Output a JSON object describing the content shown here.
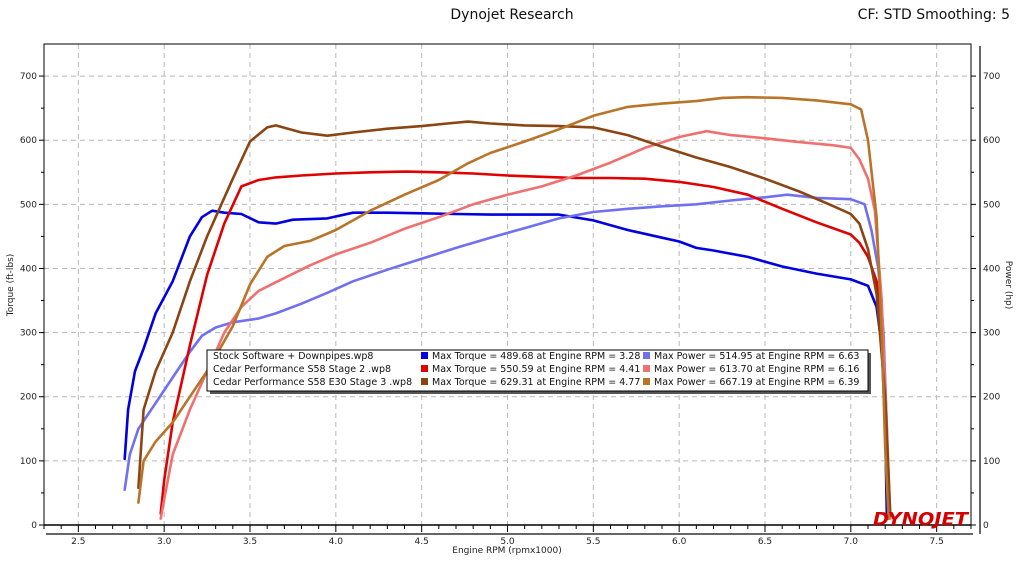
{
  "header": {
    "title": "Dynojet Research",
    "right_info": "CF: STD Smoothing: 5"
  },
  "logo": {
    "text": "DYNOJET"
  },
  "chart_data": {
    "type": "line",
    "xlabel": "Engine RPM (rpmx1000)",
    "ylabel_left": "Torque (ft-lbs)",
    "ylabel_right": "Power (hp)",
    "xlim": [
      2.3,
      7.7
    ],
    "ylim_left": [
      0,
      750
    ],
    "ylim_right": [
      0,
      750
    ],
    "x_ticks": [
      "2.5",
      "3.0",
      "3.5",
      "4.0",
      "4.5",
      "5.0",
      "5.5",
      "6.0",
      "6.5",
      "7.0",
      "7.5"
    ],
    "y_ticks_left": [
      "0",
      "100",
      "200",
      "300",
      "400",
      "500",
      "600",
      "700"
    ],
    "y_ticks_right": [
      "0",
      "100",
      "200",
      "300",
      "400",
      "500",
      "600",
      "700"
    ],
    "grid": true,
    "legend_position": "bottom-center",
    "legend": [
      {
        "run": "Stock Software + Downpipes.wp8",
        "torque_label": "Max Torque = 489.68 at Engine RPM = 3.28",
        "power_label": "Max Power = 514.95 at Engine RPM = 6.63",
        "torque_color": "#0000e0",
        "power_color": "#7070f0"
      },
      {
        "run": "Cedar Performance S58 Stage 2 .wp8",
        "torque_label": "Max Torque = 550.59 at Engine RPM = 4.41",
        "power_label": "Max Power = 613.70 at Engine RPM = 6.16",
        "torque_color": "#e00000",
        "power_color": "#f07070"
      },
      {
        "run": "Cedar Performance S58 E30 Stage 3  .wp8",
        "torque_label": "Max Torque = 629.31 at Engine RPM = 4.77",
        "power_label": "Max Power = 667.19 at Engine RPM = 6.39",
        "torque_color": "#8b4513",
        "power_color": "#b8752a"
      }
    ],
    "series": [
      {
        "name": "Stock Software + Downpipes.wp8",
        "kind": "torque",
        "color": "#0000e0",
        "points": [
          [
            2.77,
            103
          ],
          [
            2.79,
            180
          ],
          [
            2.83,
            240
          ],
          [
            2.88,
            275
          ],
          [
            2.95,
            330
          ],
          [
            3.05,
            380
          ],
          [
            3.15,
            450
          ],
          [
            3.22,
            480
          ],
          [
            3.28,
            490
          ],
          [
            3.35,
            487
          ],
          [
            3.45,
            485
          ],
          [
            3.55,
            472
          ],
          [
            3.65,
            470
          ],
          [
            3.75,
            476
          ],
          [
            3.85,
            477
          ],
          [
            3.95,
            478
          ],
          [
            4.1,
            487
          ],
          [
            4.3,
            487
          ],
          [
            4.5,
            486
          ],
          [
            4.7,
            485
          ],
          [
            4.9,
            484
          ],
          [
            5.1,
            484
          ],
          [
            5.3,
            484
          ],
          [
            5.5,
            475
          ],
          [
            5.7,
            460
          ],
          [
            5.9,
            448
          ],
          [
            6.0,
            442
          ],
          [
            6.1,
            432
          ],
          [
            6.2,
            428
          ],
          [
            6.4,
            418
          ],
          [
            6.6,
            403
          ],
          [
            6.8,
            392
          ],
          [
            7.0,
            383
          ],
          [
            7.1,
            373
          ],
          [
            7.15,
            340
          ],
          [
            7.18,
            280
          ],
          [
            7.2,
            150
          ],
          [
            7.21,
            10
          ]
        ]
      },
      {
        "name": "Stock Software + Downpipes.wp8",
        "kind": "power",
        "color": "#7070f0",
        "points": [
          [
            2.77,
            55
          ],
          [
            2.8,
            110
          ],
          [
            2.85,
            150
          ],
          [
            2.95,
            190
          ],
          [
            3.05,
            230
          ],
          [
            3.15,
            270
          ],
          [
            3.22,
            295
          ],
          [
            3.3,
            308
          ],
          [
            3.4,
            316
          ],
          [
            3.55,
            322
          ],
          [
            3.65,
            330
          ],
          [
            3.8,
            345
          ],
          [
            3.95,
            362
          ],
          [
            4.1,
            380
          ],
          [
            4.3,
            398
          ],
          [
            4.5,
            415
          ],
          [
            4.7,
            432
          ],
          [
            4.9,
            448
          ],
          [
            5.1,
            463
          ],
          [
            5.3,
            478
          ],
          [
            5.5,
            488
          ],
          [
            5.7,
            493
          ],
          [
            5.9,
            497
          ],
          [
            6.1,
            500
          ],
          [
            6.3,
            506
          ],
          [
            6.5,
            511
          ],
          [
            6.63,
            515
          ],
          [
            6.8,
            510
          ],
          [
            7.0,
            508
          ],
          [
            7.08,
            500
          ],
          [
            7.12,
            460
          ],
          [
            7.16,
            400
          ],
          [
            7.19,
            300
          ],
          [
            7.21,
            150
          ],
          [
            7.22,
            10
          ]
        ]
      },
      {
        "name": "Cedar Performance S58 Stage 2 .wp8",
        "kind": "torque",
        "color": "#e00000",
        "points": [
          [
            2.98,
            18
          ],
          [
            3.0,
            70
          ],
          [
            3.05,
            160
          ],
          [
            3.15,
            280
          ],
          [
            3.25,
            390
          ],
          [
            3.35,
            470
          ],
          [
            3.45,
            528
          ],
          [
            3.55,
            538
          ],
          [
            3.65,
            542
          ],
          [
            3.8,
            545
          ],
          [
            4.0,
            548
          ],
          [
            4.2,
            550
          ],
          [
            4.41,
            551
          ],
          [
            4.6,
            550
          ],
          [
            4.8,
            548
          ],
          [
            5.0,
            545
          ],
          [
            5.2,
            543
          ],
          [
            5.4,
            541
          ],
          [
            5.6,
            541
          ],
          [
            5.8,
            540
          ],
          [
            6.0,
            535
          ],
          [
            6.2,
            527
          ],
          [
            6.4,
            515
          ],
          [
            6.6,
            493
          ],
          [
            6.8,
            472
          ],
          [
            7.0,
            453
          ],
          [
            7.05,
            440
          ],
          [
            7.1,
            418
          ],
          [
            7.15,
            380
          ],
          [
            7.18,
            300
          ],
          [
            7.2,
            180
          ],
          [
            7.22,
            10
          ]
        ]
      },
      {
        "name": "Cedar Performance S58 Stage 2 .wp8",
        "kind": "power",
        "color": "#f07070",
        "points": [
          [
            2.98,
            10
          ],
          [
            3.0,
            40
          ],
          [
            3.05,
            110
          ],
          [
            3.15,
            180
          ],
          [
            3.25,
            240
          ],
          [
            3.35,
            300
          ],
          [
            3.45,
            340
          ],
          [
            3.55,
            365
          ],
          [
            3.7,
            385
          ],
          [
            3.85,
            405
          ],
          [
            4.0,
            422
          ],
          [
            4.2,
            440
          ],
          [
            4.41,
            463
          ],
          [
            4.6,
            480
          ],
          [
            4.8,
            500
          ],
          [
            5.0,
            515
          ],
          [
            5.2,
            528
          ],
          [
            5.4,
            545
          ],
          [
            5.6,
            565
          ],
          [
            5.8,
            588
          ],
          [
            6.0,
            605
          ],
          [
            6.16,
            614
          ],
          [
            6.3,
            608
          ],
          [
            6.5,
            603
          ],
          [
            6.7,
            597
          ],
          [
            6.9,
            592
          ],
          [
            7.0,
            588
          ],
          [
            7.05,
            570
          ],
          [
            7.1,
            540
          ],
          [
            7.14,
            490
          ],
          [
            7.18,
            350
          ],
          [
            7.21,
            150
          ],
          [
            7.23,
            10
          ]
        ]
      },
      {
        "name": "Cedar Performance S58 E30 Stage 3  .wp8",
        "kind": "torque",
        "color": "#8b4513",
        "points": [
          [
            2.85,
            58
          ],
          [
            2.88,
            180
          ],
          [
            2.95,
            240
          ],
          [
            3.05,
            300
          ],
          [
            3.15,
            380
          ],
          [
            3.25,
            450
          ],
          [
            3.4,
            540
          ],
          [
            3.5,
            598
          ],
          [
            3.6,
            620
          ],
          [
            3.65,
            623
          ],
          [
            3.8,
            612
          ],
          [
            3.95,
            607
          ],
          [
            4.1,
            612
          ],
          [
            4.3,
            618
          ],
          [
            4.5,
            622
          ],
          [
            4.65,
            626
          ],
          [
            4.77,
            629
          ],
          [
            4.9,
            626
          ],
          [
            5.1,
            623
          ],
          [
            5.3,
            622
          ],
          [
            5.5,
            620
          ],
          [
            5.7,
            608
          ],
          [
            5.9,
            590
          ],
          [
            6.1,
            573
          ],
          [
            6.3,
            558
          ],
          [
            6.5,
            540
          ],
          [
            6.7,
            520
          ],
          [
            6.9,
            497
          ],
          [
            7.0,
            485
          ],
          [
            7.05,
            470
          ],
          [
            7.1,
            430
          ],
          [
            7.15,
            360
          ],
          [
            7.2,
            200
          ],
          [
            7.23,
            15
          ]
        ]
      },
      {
        "name": "Cedar Performance S58 E30 Stage 3  .wp8",
        "kind": "power",
        "color": "#b8752a",
        "points": [
          [
            2.85,
            35
          ],
          [
            2.88,
            100
          ],
          [
            2.95,
            130
          ],
          [
            3.05,
            160
          ],
          [
            3.15,
            200
          ],
          [
            3.25,
            240
          ],
          [
            3.4,
            310
          ],
          [
            3.5,
            375
          ],
          [
            3.6,
            418
          ],
          [
            3.7,
            435
          ],
          [
            3.85,
            443
          ],
          [
            4.0,
            460
          ],
          [
            4.2,
            490
          ],
          [
            4.4,
            515
          ],
          [
            4.6,
            538
          ],
          [
            4.77,
            564
          ],
          [
            4.9,
            580
          ],
          [
            5.1,
            598
          ],
          [
            5.3,
            617
          ],
          [
            5.5,
            638
          ],
          [
            5.7,
            652
          ],
          [
            5.9,
            657
          ],
          [
            6.1,
            661
          ],
          [
            6.25,
            666
          ],
          [
            6.39,
            667
          ],
          [
            6.6,
            666
          ],
          [
            6.8,
            662
          ],
          [
            7.0,
            656
          ],
          [
            7.06,
            648
          ],
          [
            7.1,
            600
          ],
          [
            7.15,
            480
          ],
          [
            7.18,
            300
          ],
          [
            7.2,
            120
          ],
          [
            7.22,
            10
          ]
        ]
      }
    ]
  }
}
